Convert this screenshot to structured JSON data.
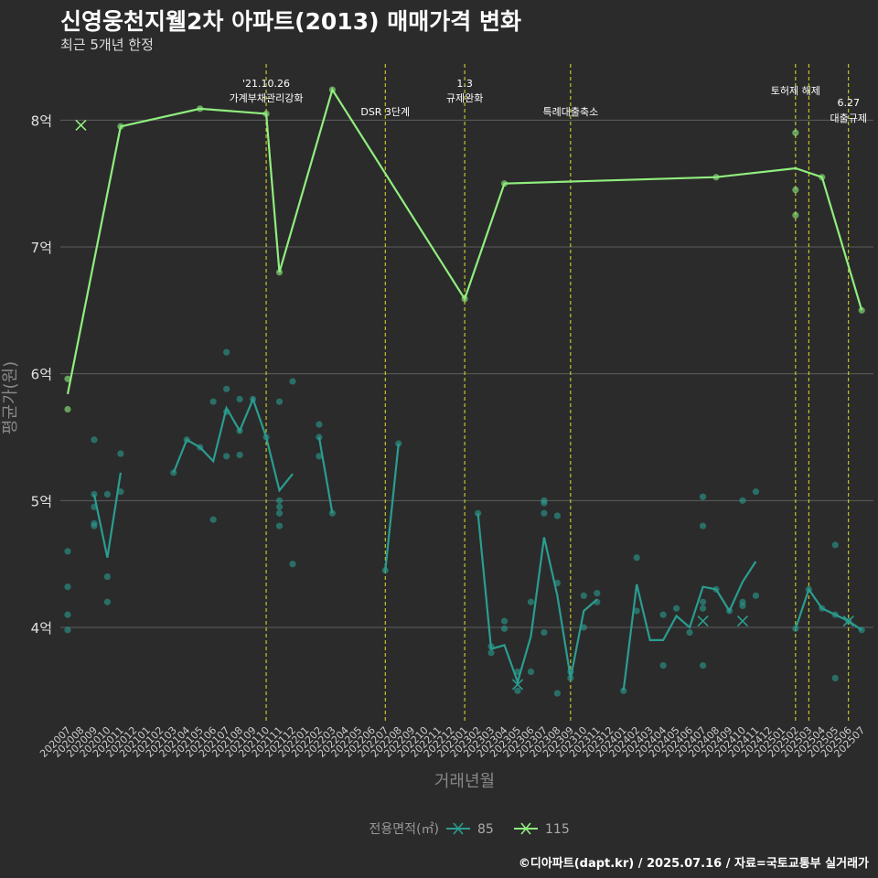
{
  "title": "신영웅천지웰2차 아파트(2013) 매매가격 변화",
  "subtitle": "최근 5개년 한정",
  "footer": "©디아파트(dapt.kr) / 2025.07.16 / 자료=국토교통부 실거래가",
  "chart_data": {
    "type": "line",
    "xlabel": "거래년월",
    "ylabel": "평균가(원)",
    "ylim": [
      3.25,
      8.5
    ],
    "y_ticks": [
      4,
      5,
      6,
      7,
      8
    ],
    "y_tick_labels": [
      "4억",
      "5억",
      "6억",
      "7억",
      "8억"
    ],
    "x_ticks": [
      "202007",
      "202008",
      "202009",
      "202010",
      "202011",
      "202012",
      "202101",
      "202102",
      "202103",
      "202104",
      "202105",
      "202106",
      "202107",
      "202108",
      "202109",
      "202110",
      "202111",
      "202112",
      "202201",
      "202202",
      "202203",
      "202204",
      "202205",
      "202206",
      "202207",
      "202208",
      "202209",
      "202210",
      "202211",
      "202212",
      "202301",
      "202302",
      "202303",
      "202304",
      "202305",
      "202306",
      "202307",
      "202308",
      "202309",
      "202310",
      "202311",
      "202312",
      "202401",
      "202402",
      "202403",
      "202404",
      "202405",
      "202406",
      "202407",
      "202408",
      "202409",
      "202410",
      "202411",
      "202412",
      "202501",
      "202502",
      "202503",
      "202504",
      "202505",
      "202506",
      "202507"
    ],
    "legend_title": "전용면적(㎡)",
    "legend_position": "bottom",
    "grid": true,
    "series": [
      {
        "name": "85",
        "color": "#2a9d8f",
        "line_segments": [
          [
            [
              2,
              5.05
            ],
            [
              3,
              4.55
            ],
            [
              4,
              5.22
            ]
          ],
          [
            [
              8,
              5.22
            ],
            [
              9,
              5.48
            ],
            [
              10,
              5.42
            ],
            [
              11,
              5.31
            ],
            [
              12,
              5.73
            ],
            [
              13,
              5.55
            ],
            [
              14,
              5.8
            ],
            [
              15,
              5.5
            ],
            [
              16,
              5.08
            ],
            [
              17,
              5.21
            ]
          ],
          [
            [
              19,
              5.5
            ],
            [
              20,
              4.9
            ]
          ],
          [
            [
              24,
              4.45
            ],
            [
              25,
              5.45
            ]
          ],
          [
            [
              31,
              4.9
            ],
            [
              32,
              3.83
            ],
            [
              33,
              3.86
            ],
            [
              34,
              3.57
            ],
            [
              35,
              3.93
            ],
            [
              36,
              4.71
            ],
            [
              37,
              4.25
            ],
            [
              38,
              3.6
            ],
            [
              39,
              4.13
            ],
            [
              40,
              4.22
            ]
          ],
          [
            [
              42,
              3.5
            ],
            [
              43,
              4.34
            ],
            [
              44,
              3.9
            ],
            [
              45,
              3.9
            ],
            [
              46,
              4.09
            ],
            [
              47,
              4.0
            ],
            [
              48,
              4.32
            ],
            [
              49,
              4.3
            ],
            [
              50,
              4.13
            ],
            [
              51,
              4.36
            ],
            [
              52,
              4.52
            ]
          ],
          [
            [
              55,
              3.99
            ],
            [
              56,
              4.3
            ],
            [
              57,
              4.15
            ],
            [
              58,
              4.1
            ],
            [
              59,
              4.05
            ],
            [
              60,
              3.98
            ]
          ]
        ],
        "points": [
          [
            0,
            4.6
          ],
          [
            0,
            4.32
          ],
          [
            0,
            4.1
          ],
          [
            0,
            3.98
          ],
          [
            2,
            5.48
          ],
          [
            2,
            5.05
          ],
          [
            2,
            4.95
          ],
          [
            2,
            4.82
          ],
          [
            2,
            4.8
          ],
          [
            3,
            5.05
          ],
          [
            3,
            4.4
          ],
          [
            3,
            4.2
          ],
          [
            4,
            5.37
          ],
          [
            4,
            5.07
          ],
          [
            8,
            5.22
          ],
          [
            9,
            5.48
          ],
          [
            10,
            5.42
          ],
          [
            11,
            5.78
          ],
          [
            11,
            4.85
          ],
          [
            12,
            6.17
          ],
          [
            12,
            5.88
          ],
          [
            12,
            5.7
          ],
          [
            12,
            5.35
          ],
          [
            13,
            5.8
          ],
          [
            13,
            5.55
          ],
          [
            13,
            5.36
          ],
          [
            14,
            5.8
          ],
          [
            15,
            5.5
          ],
          [
            16,
            5.78
          ],
          [
            16,
            5.0
          ],
          [
            16,
            4.95
          ],
          [
            16,
            4.9
          ],
          [
            16,
            4.8
          ],
          [
            17,
            5.94
          ],
          [
            17,
            4.5
          ],
          [
            19,
            5.6
          ],
          [
            19,
            5.5
          ],
          [
            19,
            5.35
          ],
          [
            20,
            4.9
          ],
          [
            24,
            4.45
          ],
          [
            25,
            5.45
          ],
          [
            31,
            4.9
          ],
          [
            32,
            3.85
          ],
          [
            32,
            3.8
          ],
          [
            33,
            4.05
          ],
          [
            33,
            3.99
          ],
          [
            34,
            3.65
          ],
          [
            34,
            3.5
          ],
          [
            35,
            4.2
          ],
          [
            35,
            3.65
          ],
          [
            36,
            5.0
          ],
          [
            36,
            4.98
          ],
          [
            36,
            4.9
          ],
          [
            36,
            3.96
          ],
          [
            37,
            4.88
          ],
          [
            37,
            4.35
          ],
          [
            37,
            3.48
          ],
          [
            38,
            3.65
          ],
          [
            38,
            3.6
          ],
          [
            39,
            4.25
          ],
          [
            39,
            4.0
          ],
          [
            40,
            4.27
          ],
          [
            40,
            4.2
          ],
          [
            42,
            3.5
          ],
          [
            43,
            4.55
          ],
          [
            43,
            4.13
          ],
          [
            45,
            4.1
          ],
          [
            45,
            3.7
          ],
          [
            46,
            4.15
          ],
          [
            47,
            3.96
          ],
          [
            48,
            5.03
          ],
          [
            48,
            4.8
          ],
          [
            48,
            4.2
          ],
          [
            48,
            4.15
          ],
          [
            48,
            3.7
          ],
          [
            49,
            4.3
          ],
          [
            50,
            4.13
          ],
          [
            51,
            5.0
          ],
          [
            51,
            4.2
          ],
          [
            51,
            4.17
          ],
          [
            52,
            5.07
          ],
          [
            52,
            4.25
          ],
          [
            55,
            3.99
          ],
          [
            56,
            4.3
          ],
          [
            57,
            4.15
          ],
          [
            58,
            4.65
          ],
          [
            58,
            4.1
          ],
          [
            58,
            3.6
          ],
          [
            59,
            4.05
          ],
          [
            60,
            3.98
          ]
        ],
        "cancelled": [
          [
            34,
            3.55
          ],
          [
            48,
            4.05
          ],
          [
            51,
            4.05
          ],
          [
            59,
            4.05
          ]
        ]
      },
      {
        "name": "115",
        "color": "#90ee7e",
        "line_segments": [
          [
            [
              0,
              5.84
            ],
            [
              4,
              7.95
            ],
            [
              10,
              8.09
            ],
            [
              15,
              8.05
            ],
            [
              16,
              6.8
            ],
            [
              20,
              8.24
            ],
            [
              30,
              6.59
            ],
            [
              33,
              7.5
            ],
            [
              49,
              7.55
            ],
            [
              55,
              7.62
            ],
            [
              57,
              7.55
            ],
            [
              60,
              6.5
            ]
          ]
        ],
        "points": [
          [
            0,
            5.96
          ],
          [
            0,
            5.72
          ],
          [
            4,
            7.95
          ],
          [
            10,
            8.09
          ],
          [
            15,
            8.05
          ],
          [
            16,
            6.8
          ],
          [
            20,
            8.24
          ],
          [
            30,
            6.59
          ],
          [
            33,
            7.5
          ],
          [
            49,
            7.55
          ],
          [
            55,
            7.9
          ],
          [
            55,
            7.45
          ],
          [
            55,
            7.25
          ],
          [
            57,
            7.55
          ],
          [
            60,
            6.5
          ]
        ],
        "cancelled": [
          [
            1,
            7.96
          ]
        ]
      }
    ],
    "annotations": [
      {
        "x": 15,
        "lines": [
          "'21.10.26",
          "가계부채관리강화"
        ]
      },
      {
        "x": 24,
        "lines": [
          "DSR 3단계"
        ]
      },
      {
        "x": 30,
        "lines": [
          "1.3",
          "규제완화"
        ]
      },
      {
        "x": 38,
        "lines": [
          "특례대출축소"
        ]
      },
      {
        "x": 55,
        "lines": [
          "토허제 해제"
        ]
      },
      {
        "x": 56,
        "lines": []
      },
      {
        "x": 59,
        "lines": [
          "6.27",
          "대출규제"
        ]
      }
    ]
  }
}
